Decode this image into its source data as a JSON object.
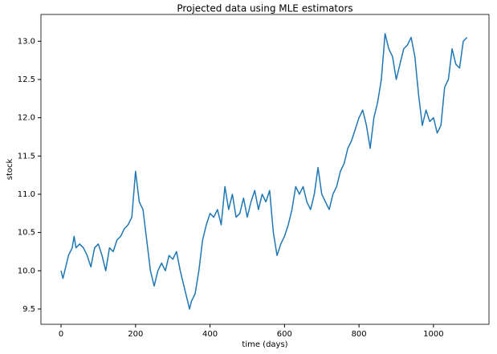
{
  "chart_data": {
    "type": "line",
    "title": "Projected data using MLE estimators",
    "xlabel": "time (days)",
    "ylabel": "stock",
    "x": [
      0,
      5,
      10,
      20,
      30,
      35,
      40,
      50,
      60,
      70,
      80,
      90,
      100,
      110,
      120,
      130,
      140,
      150,
      160,
      170,
      180,
      190,
      200,
      210,
      220,
      230,
      240,
      250,
      260,
      270,
      280,
      290,
      300,
      310,
      320,
      330,
      340,
      345,
      350,
      360,
      370,
      380,
      390,
      400,
      410,
      420,
      430,
      440,
      450,
      460,
      470,
      480,
      490,
      500,
      510,
      520,
      530,
      540,
      550,
      560,
      570,
      580,
      590,
      600,
      610,
      620,
      630,
      640,
      650,
      660,
      670,
      680,
      690,
      700,
      710,
      720,
      730,
      740,
      750,
      760,
      770,
      780,
      790,
      800,
      810,
      820,
      830,
      840,
      850,
      860,
      870,
      880,
      890,
      900,
      910,
      920,
      930,
      940,
      950,
      960,
      970,
      980,
      990,
      1000,
      1010,
      1020,
      1030,
      1040,
      1050,
      1060,
      1070,
      1080,
      1090
    ],
    "values": [
      10.0,
      9.9,
      10.0,
      10.2,
      10.3,
      10.45,
      10.3,
      10.35,
      10.3,
      10.2,
      10.05,
      10.3,
      10.35,
      10.2,
      10.0,
      10.3,
      10.25,
      10.4,
      10.45,
      10.55,
      10.6,
      10.7,
      11.3,
      10.9,
      10.8,
      10.4,
      10.0,
      9.8,
      10.0,
      10.1,
      10.0,
      10.2,
      10.15,
      10.25,
      10.0,
      9.8,
      9.6,
      9.5,
      9.6,
      9.7,
      10.0,
      10.4,
      10.6,
      10.75,
      10.7,
      10.8,
      10.6,
      11.1,
      10.8,
      11.0,
      10.7,
      10.75,
      10.95,
      10.7,
      10.9,
      11.05,
      10.8,
      11.0,
      10.9,
      11.05,
      10.5,
      10.2,
      10.35,
      10.45,
      10.6,
      10.8,
      11.1,
      11.0,
      11.1,
      10.9,
      10.8,
      11.0,
      11.35,
      11.0,
      10.9,
      10.8,
      11.0,
      11.1,
      11.3,
      11.4,
      11.6,
      11.7,
      11.85,
      12.0,
      12.1,
      11.9,
      11.6,
      12.0,
      12.2,
      12.5,
      13.1,
      12.9,
      12.8,
      12.5,
      12.7,
      12.9,
      12.95,
      13.05,
      12.8,
      12.3,
      11.9,
      12.1,
      11.95,
      12.0,
      11.8,
      11.9,
      12.4,
      12.5,
      12.9,
      12.7,
      12.65,
      13.0,
      13.05
    ],
    "color": "#1f77b4",
    "xlim": [
      -54,
      1149
    ],
    "xticks": [
      0,
      200,
      400,
      600,
      800,
      1000
    ],
    "ylim": [
      9.3,
      13.35
    ],
    "yticks": [
      9.5,
      {
        "value": 10,
        "label": "10.0"
      },
      10.5,
      {
        "value": 11,
        "label": "11.0"
      },
      11.5,
      {
        "value": 12,
        "label": "12.0"
      },
      12.5,
      {
        "value": 13,
        "label": "13.0"
      }
    ]
  }
}
